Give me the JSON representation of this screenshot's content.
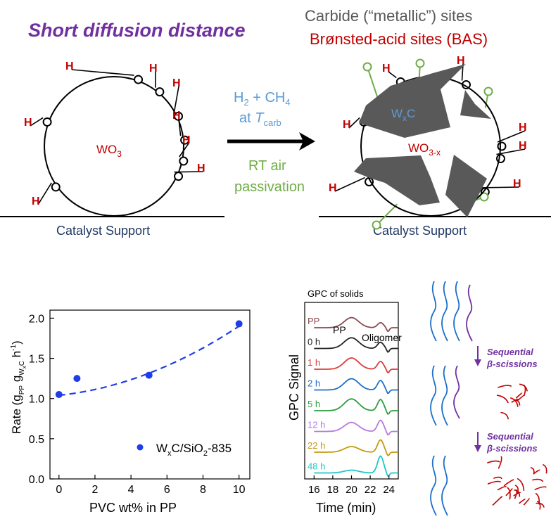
{
  "top": {
    "title": "Short diffusion distance",
    "carbide_label": "Carbide (“metallic”) sites",
    "bas_label": "Brønsted-acid sites (BAS)",
    "support_left": "Catalyst Support",
    "support_right": "Catalyst Support",
    "particle_left": {
      "base": "WO",
      "sub": "3"
    },
    "particle_right": {
      "base": "WO",
      "sub": "3-x"
    },
    "carbide_particle": {
      "base": "W",
      "sub": "x",
      "tail": "C"
    },
    "arrow_top": {
      "a": "H",
      "a_sub": "2",
      "mid": " + CH",
      "b_sub": "4"
    },
    "arrow_mid": {
      "pre": "at ",
      "t": "T",
      "t_sub": "carb"
    },
    "arrow_bottom_1": "RT air",
    "arrow_bottom_2": "passivation",
    "h_label": "H"
  },
  "chart_data": {
    "type": "scatter",
    "x": [
      0,
      1,
      5,
      10
    ],
    "y": [
      1.05,
      1.25,
      1.29,
      1.93
    ],
    "fit_line": "dashed, curved",
    "xlim": [
      -0.5,
      10.6
    ],
    "ylim": [
      0.0,
      2.1
    ],
    "xticks": [
      "0",
      "2",
      "4",
      "6",
      "8",
      "10"
    ],
    "yticks": [
      "0.0",
      "0.5",
      "1.0",
      "1.5",
      "2.0"
    ],
    "xlabel": "PVC wt% in PP",
    "ylabel": {
      "base": "Rate (g",
      "s1": "PP",
      "mid": " g",
      "s2": "W",
      "s3": "x",
      "s4": "C",
      "end": " h",
      "sup": "-1",
      "close": ")"
    },
    "legend": {
      "base": "W",
      "s1": "x",
      "mid": "C/SiO",
      "s2": "2",
      "end": "-835"
    },
    "legend_position": "bottom-right",
    "colors": {
      "points": "#1f3de8",
      "fit": "#1f3de8"
    }
  },
  "gpc": {
    "title": "GPC of solids",
    "ylabel": "GPC Signal",
    "xlabel": "Time (min)",
    "xticks": [
      "16",
      "18",
      "20",
      "22",
      "24"
    ],
    "pp_label": "PP",
    "oligomer_label": "Oligomer",
    "traces": [
      {
        "label": "PP",
        "color": "#8b4a52"
      },
      {
        "label": "0 h",
        "color": "#222222"
      },
      {
        "label": "1 h",
        "color": "#e03a3a"
      },
      {
        "label": "2 h",
        "color": "#1c6fc9"
      },
      {
        "label": "5 h",
        "color": "#2e9e3e"
      },
      {
        "label": "12 h",
        "color": "#b57ae0"
      },
      {
        "label": "22 h",
        "color": "#c39a0e"
      },
      {
        "label": "48 h",
        "color": "#1ec8c8"
      }
    ]
  },
  "scission": {
    "label1": "Sequential",
    "label1b": "β-scissions",
    "label2": "Sequential",
    "label2b": "β-scissions"
  },
  "colors": {
    "purple": "#7030a0",
    "red": "#c00000",
    "gray": "#595959",
    "navy": "#1f3864",
    "blue_text": "#5b9bd5",
    "green": "#70ad47"
  }
}
